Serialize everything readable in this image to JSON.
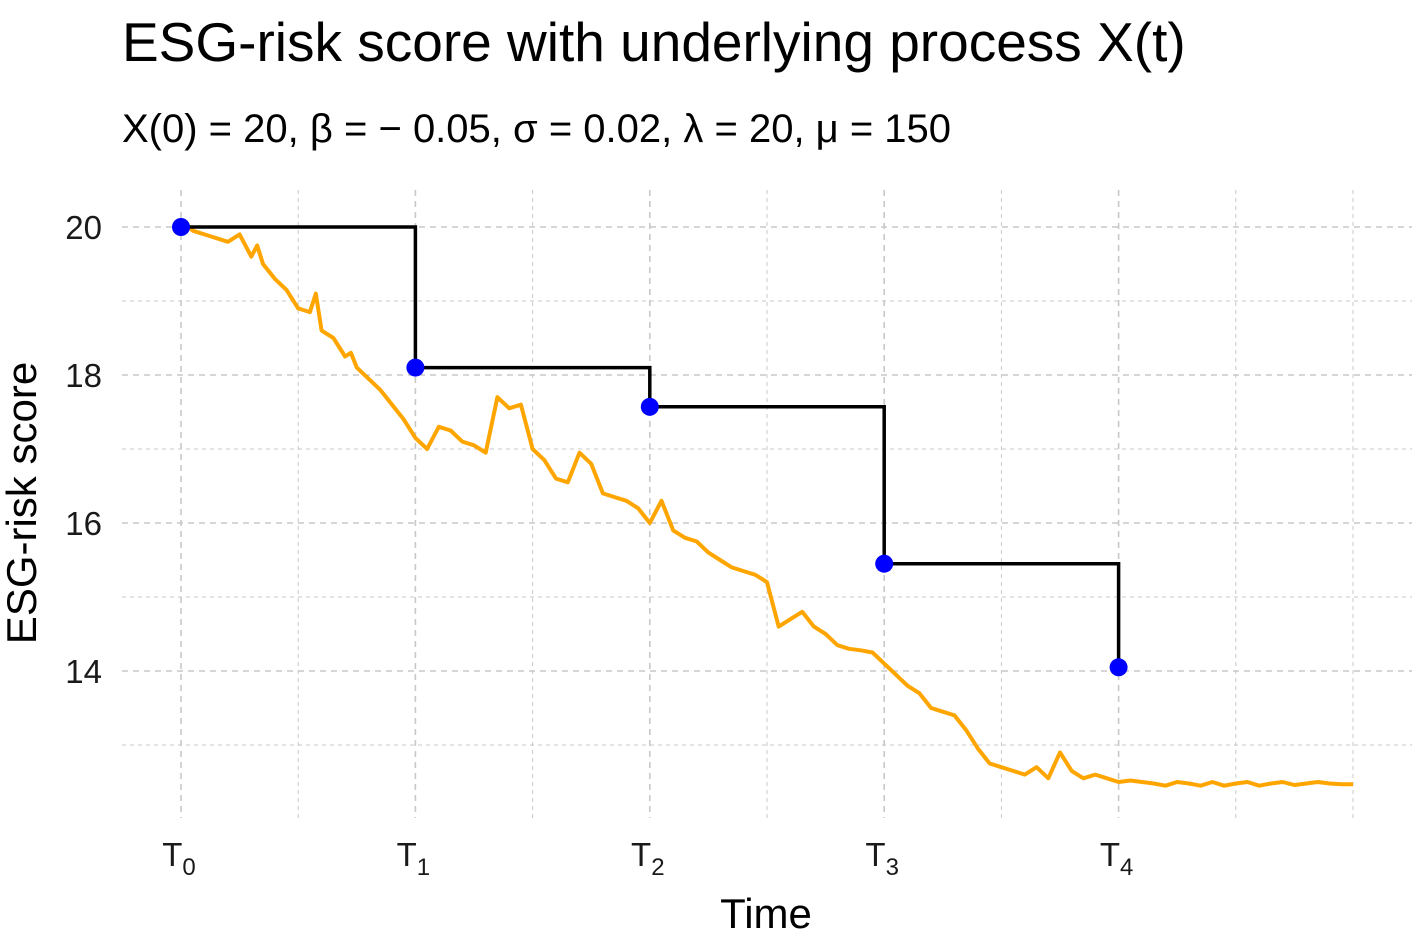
{
  "chart_data": {
    "type": "line",
    "title": "ESG-risk score with underlying process X(t)",
    "subtitle": "X(0) = 20, β =  − 0.05, σ = 0.02, λ = 20, μ = 150",
    "xlabel": "Time",
    "ylabel": "ESG-risk score",
    "xlim": [
      0,
      1
    ],
    "ylim": [
      12.0,
      20.5
    ],
    "y_ticks": [
      14,
      16,
      18,
      20
    ],
    "x_ticks": [
      {
        "x": 0.0,
        "base": "T",
        "sub": "0"
      },
      {
        "x": 0.2,
        "base": "T",
        "sub": "1"
      },
      {
        "x": 0.4,
        "base": "T",
        "sub": "2"
      },
      {
        "x": 0.6,
        "base": "T",
        "sub": "3"
      },
      {
        "x": 0.8,
        "base": "T",
        "sub": "4"
      }
    ],
    "grid": true,
    "colors": {
      "process": "#FFA500",
      "score": "#000000",
      "points": "#0000FF",
      "grid": "#c8c8c8"
    },
    "process_path": {
      "x": [
        0.0,
        0.01,
        0.02,
        0.03,
        0.04,
        0.05,
        0.06,
        0.065,
        0.07,
        0.08,
        0.09,
        0.1,
        0.11,
        0.115,
        0.12,
        0.13,
        0.14,
        0.145,
        0.15,
        0.16,
        0.17,
        0.18,
        0.19,
        0.2,
        0.21,
        0.22,
        0.23,
        0.24,
        0.25,
        0.26,
        0.27,
        0.28,
        0.29,
        0.3,
        0.31,
        0.32,
        0.33,
        0.34,
        0.35,
        0.36,
        0.37,
        0.38,
        0.39,
        0.4,
        0.41,
        0.42,
        0.43,
        0.44,
        0.45,
        0.46,
        0.47,
        0.48,
        0.49,
        0.5,
        0.51,
        0.52,
        0.53,
        0.54,
        0.55,
        0.56,
        0.57,
        0.58,
        0.59,
        0.6,
        0.61,
        0.62,
        0.63,
        0.64,
        0.65,
        0.66,
        0.67,
        0.68,
        0.69,
        0.7,
        0.71,
        0.72,
        0.73,
        0.74,
        0.75,
        0.76,
        0.77,
        0.78,
        0.79,
        0.8,
        0.81,
        0.82,
        0.83,
        0.84,
        0.85,
        0.86,
        0.87,
        0.88,
        0.89,
        0.9,
        0.91,
        0.92,
        0.93,
        0.94,
        0.95,
        0.96,
        0.97,
        0.98,
        0.99,
        1.0
      ],
      "y": [
        20.1,
        19.95,
        19.9,
        19.85,
        19.8,
        19.9,
        19.6,
        19.75,
        19.5,
        19.3,
        19.15,
        18.9,
        18.85,
        19.1,
        18.6,
        18.5,
        18.25,
        18.3,
        18.1,
        17.95,
        17.8,
        17.6,
        17.4,
        17.15,
        17.0,
        17.3,
        17.25,
        17.1,
        17.05,
        16.95,
        17.7,
        17.55,
        17.6,
        17.0,
        16.85,
        16.6,
        16.55,
        16.95,
        16.8,
        16.4,
        16.35,
        16.3,
        16.2,
        16.0,
        16.3,
        15.9,
        15.8,
        15.75,
        15.6,
        15.5,
        15.4,
        15.35,
        15.3,
        15.2,
        14.6,
        14.7,
        14.8,
        14.6,
        14.5,
        14.35,
        14.3,
        14.28,
        14.25,
        14.1,
        13.95,
        13.8,
        13.7,
        13.5,
        13.45,
        13.4,
        13.2,
        12.95,
        12.75,
        12.7,
        12.65,
        12.6,
        12.7,
        12.55,
        12.9,
        12.65,
        12.55,
        12.6,
        12.55,
        12.5,
        12.52,
        12.5,
        12.48,
        12.45,
        12.5,
        12.48,
        12.45,
        12.5,
        12.45,
        12.48,
        12.5,
        12.45,
        12.48,
        12.5,
        12.46,
        12.48,
        12.5,
        12.48,
        12.47,
        12.47
      ]
    },
    "score_steps": {
      "t": [
        0.0,
        0.2,
        0.4,
        0.6,
        0.8
      ],
      "y": [
        20.0,
        18.1,
        17.57,
        15.45,
        14.05
      ]
    }
  }
}
